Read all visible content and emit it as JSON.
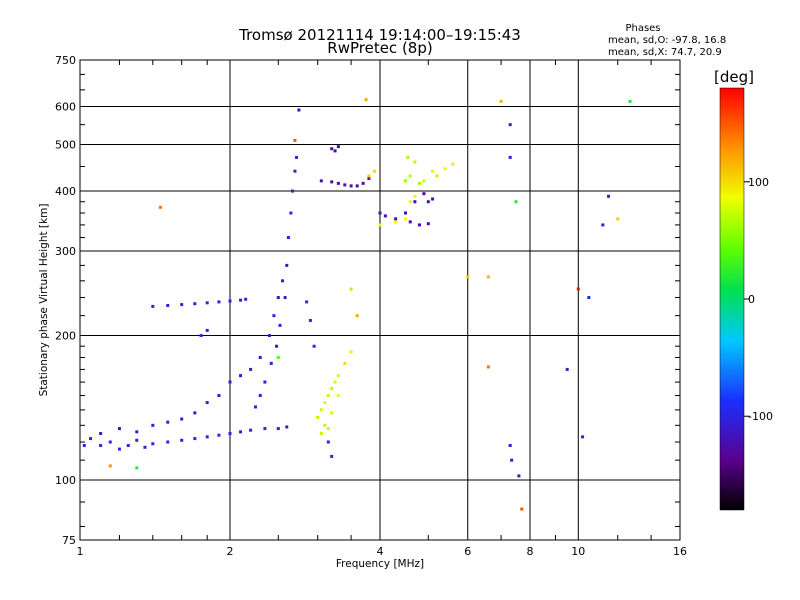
{
  "chart_data": {
    "type": "scatter",
    "title": "Tromsø 20121114 19:14:00–19:15:43",
    "subtitle": "RwPretec (8p)",
    "xlabel": "Frequency [MHz]",
    "ylabel": "Stationary phase Virtual Height [km]",
    "x_scale": "log",
    "y_scale": "log",
    "xlim": [
      1,
      16
    ],
    "ylim": [
      75,
      750
    ],
    "x_ticks": [
      1,
      2,
      4,
      6,
      8,
      10,
      16
    ],
    "x_tick_labels": [
      "1",
      "2",
      "4",
      "6",
      "8",
      "10",
      "16"
    ],
    "y_ticks": [
      75,
      100,
      200,
      300,
      400,
      500,
      600,
      750
    ],
    "y_tick_labels": [
      "75",
      "100",
      "200",
      "300",
      "400",
      "500",
      "600",
      "750"
    ],
    "grid": true,
    "stats": {
      "heading": "Phases",
      "line_o": "mean, sd,O:  -97.8, 16.8",
      "line_x": "mean, sd,X:  74.7, 20.9"
    },
    "colorbar": {
      "unit_label": "[deg]",
      "range": [
        -180,
        180
      ],
      "ticks": [
        100,
        0,
        -100
      ],
      "tick_labels": [
        "100",
        "0",
        "-100"
      ],
      "colormap": "rainbow (black-purple-blue-cyan-green-yellow-orange-red)"
    },
    "series": [
      {
        "points": [
          [
            1.02,
            118,
            -100
          ],
          [
            1.05,
            122,
            -100
          ],
          [
            1.1,
            118,
            -100
          ],
          [
            1.15,
            120,
            -95
          ],
          [
            1.2,
            116,
            -100
          ],
          [
            1.25,
            118,
            -100
          ],
          [
            1.3,
            121,
            -100
          ],
          [
            1.35,
            117,
            -105
          ],
          [
            1.4,
            119,
            -100
          ],
          [
            1.5,
            120,
            -100
          ],
          [
            1.6,
            121,
            -100
          ],
          [
            1.7,
            122,
            -100
          ],
          [
            1.8,
            123,
            -100
          ],
          [
            1.9,
            124,
            -100
          ],
          [
            2.0,
            125,
            -100
          ],
          [
            2.1,
            126,
            -100
          ],
          [
            2.2,
            127,
            -100
          ],
          [
            2.35,
            128,
            -100
          ],
          [
            2.5,
            128,
            -105
          ],
          [
            2.6,
            129,
            -100
          ],
          [
            1.1,
            125,
            -110
          ],
          [
            1.2,
            128,
            -120
          ],
          [
            1.3,
            126,
            -110
          ],
          [
            1.4,
            130,
            -110
          ],
          [
            1.5,
            132,
            -110
          ],
          [
            1.6,
            134,
            -110
          ],
          [
            1.7,
            138,
            -115
          ],
          [
            1.8,
            145,
            -110
          ],
          [
            1.9,
            150,
            -110
          ],
          [
            2.0,
            160,
            -110
          ],
          [
            2.1,
            165,
            -115
          ],
          [
            2.2,
            170,
            -110
          ],
          [
            2.3,
            180,
            -110
          ],
          [
            2.4,
            200,
            -110
          ],
          [
            2.45,
            220,
            -110
          ],
          [
            2.5,
            240,
            -110
          ],
          [
            2.55,
            260,
            -105
          ],
          [
            2.6,
            280,
            -110
          ],
          [
            2.62,
            320,
            -100
          ],
          [
            2.65,
            360,
            -100
          ],
          [
            2.67,
            400,
            -100
          ],
          [
            2.7,
            440,
            -100
          ],
          [
            2.72,
            470,
            -100
          ],
          [
            2.58,
            240,
            -110
          ],
          [
            2.52,
            210,
            -100
          ],
          [
            2.48,
            190,
            -110
          ],
          [
            2.42,
            175,
            -110
          ],
          [
            2.35,
            160,
            -110
          ],
          [
            2.3,
            150,
            -110
          ],
          [
            2.25,
            142,
            -110
          ],
          [
            1.4,
            230,
            -100
          ],
          [
            1.5,
            231,
            -100
          ],
          [
            1.6,
            232,
            -100
          ],
          [
            1.7,
            233,
            -100
          ],
          [
            1.8,
            234,
            -100
          ],
          [
            1.9,
            235,
            -105
          ],
          [
            2.0,
            236,
            -100
          ],
          [
            2.1,
            237,
            -105
          ],
          [
            2.15,
            238,
            -100
          ],
          [
            1.75,
            200,
            -100
          ],
          [
            1.8,
            205,
            -100
          ],
          [
            2.75,
            590,
            -120
          ],
          [
            2.85,
            235,
            -100
          ],
          [
            2.9,
            215,
            -100
          ],
          [
            2.95,
            190,
            -100
          ],
          [
            3.05,
            420,
            -125
          ],
          [
            3.2,
            418,
            -125
          ],
          [
            3.3,
            415,
            -125
          ],
          [
            3.4,
            412,
            -120
          ],
          [
            3.5,
            410,
            -125
          ],
          [
            3.6,
            410,
            -125
          ],
          [
            3.7,
            415,
            -120
          ],
          [
            3.8,
            425,
            -130
          ],
          [
            3.2,
            490,
            -125
          ],
          [
            3.3,
            495,
            -125
          ],
          [
            3.25,
            485,
            -130
          ],
          [
            4.0,
            360,
            -120
          ],
          [
            4.1,
            355,
            -125
          ],
          [
            4.3,
            350,
            -125
          ],
          [
            4.5,
            360,
            -125
          ],
          [
            4.7,
            380,
            -125
          ],
          [
            4.9,
            395,
            -125
          ],
          [
            5.0,
            380,
            -120
          ],
          [
            5.1,
            385,
            -125
          ],
          [
            4.6,
            345,
            -125
          ],
          [
            4.8,
            340,
            -125
          ],
          [
            5.0,
            342,
            -125
          ],
          [
            3.15,
            120,
            -105
          ],
          [
            3.2,
            112,
            -105
          ],
          [
            7.3,
            550,
            -105
          ],
          [
            7.3,
            470,
            -105
          ],
          [
            7.3,
            118,
            -110
          ],
          [
            7.35,
            110,
            -110
          ],
          [
            7.6,
            102,
            -110
          ],
          [
            9.5,
            170,
            -105
          ],
          [
            10.2,
            123,
            -105
          ],
          [
            11.2,
            340,
            -105
          ],
          [
            11.5,
            390,
            -110
          ]
        ]
      },
      {
        "points": [
          [
            3.0,
            135,
            70
          ],
          [
            3.05,
            140,
            75
          ],
          [
            3.1,
            145,
            80
          ],
          [
            3.15,
            150,
            75
          ],
          [
            3.2,
            155,
            70
          ],
          [
            3.25,
            160,
            75
          ],
          [
            3.3,
            165,
            80
          ],
          [
            3.1,
            130,
            70
          ],
          [
            3.2,
            138,
            75
          ],
          [
            3.05,
            125,
            70
          ],
          [
            3.15,
            128,
            75
          ],
          [
            3.3,
            150,
            85
          ],
          [
            3.4,
            175,
            100
          ],
          [
            3.5,
            185,
            95
          ],
          [
            3.5,
            250,
            65
          ],
          [
            3.6,
            220,
            120
          ],
          [
            3.75,
            620,
            120
          ],
          [
            3.8,
            430,
            105
          ],
          [
            3.9,
            440,
            100
          ],
          [
            4.0,
            340,
            85
          ],
          [
            4.3,
            345,
            90
          ],
          [
            4.5,
            350,
            85
          ],
          [
            4.5,
            420,
            60
          ],
          [
            4.6,
            430,
            65
          ],
          [
            4.7,
            460,
            70
          ],
          [
            4.55,
            470,
            65
          ],
          [
            4.8,
            415,
            60
          ],
          [
            4.9,
            420,
            75
          ],
          [
            5.1,
            440,
            80
          ],
          [
            5.2,
            430,
            70
          ],
          [
            5.4,
            445,
            90
          ],
          [
            5.6,
            455,
            95
          ],
          [
            4.6,
            380,
            80
          ],
          [
            4.7,
            390,
            85
          ],
          [
            1.15,
            107,
            130
          ],
          [
            1.3,
            106,
            20
          ],
          [
            1.45,
            370,
            140
          ],
          [
            2.5,
            180,
            40
          ],
          [
            2.7,
            510,
            150
          ],
          [
            6.0,
            265,
            110
          ],
          [
            6.6,
            265,
            115
          ],
          [
            6.6,
            172,
            140
          ],
          [
            7.0,
            615,
            120
          ],
          [
            7.5,
            380,
            20
          ],
          [
            7.7,
            87,
            150
          ],
          [
            10.0,
            250,
            175
          ],
          [
            10.5,
            240,
            -100
          ],
          [
            12.0,
            350,
            105
          ],
          [
            12.7,
            615,
            20
          ]
        ]
      }
    ]
  }
}
